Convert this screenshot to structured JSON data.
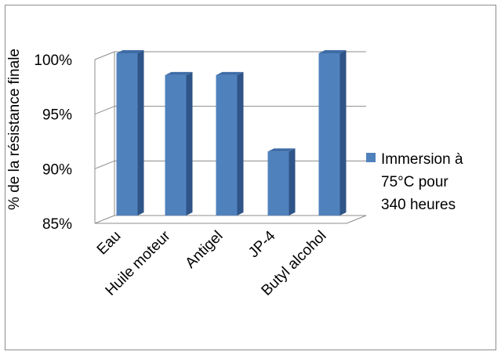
{
  "chart_data": {
    "type": "bar",
    "style": "3d-column",
    "ylabel": "% de la résistance finale",
    "categories": [
      "Eau",
      "Huile moteur",
      "Antigel",
      "JP-4",
      "Butyl alcohol"
    ],
    "series": [
      {
        "name": "Immersion à 75°C  pour 340 heures",
        "values": [
          100,
          98,
          98,
          91,
          100
        ]
      }
    ],
    "ylim": [
      85,
      100
    ],
    "yticks": [
      85,
      90,
      95,
      100
    ],
    "ytick_labels": [
      "85%",
      "90%",
      "95%",
      "100%"
    ],
    "grid": true,
    "legend_position": "right",
    "colors": {
      "bar_front": "#4f81bd",
      "bar_side": "#2f5487",
      "bar_top": "#3e6ca6",
      "grid": "#8c8c8c"
    }
  },
  "legend": {
    "text": "Immersion à\n75°C  pour\n340 heures"
  }
}
